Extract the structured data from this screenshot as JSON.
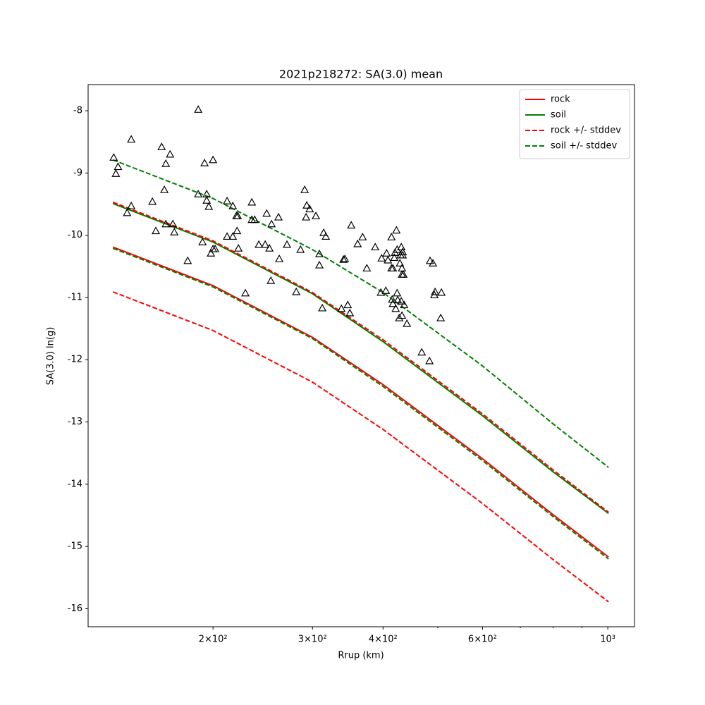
{
  "chart_data": {
    "type": "line",
    "title": "2021p218272: SA(3.0) mean",
    "xlabel": "Rrup (km)",
    "ylabel": "SA(3.0) ln(g)",
    "xscale": "log",
    "xlim": [
      120.2,
      1115
    ],
    "ylim": [
      -16.29,
      -7.58
    ],
    "xticks": [
      {
        "value": 200,
        "label": "2×10²"
      },
      {
        "value": 300,
        "label": "3×10²"
      },
      {
        "value": 400,
        "label": "4×10²"
      },
      {
        "value": 600,
        "label": "6×10²"
      },
      {
        "value": 1000,
        "label": "10³"
      }
    ],
    "xminorticks": [
      500,
      700,
      800,
      900
    ],
    "yticks": [
      -16,
      -15,
      -14,
      -13,
      -12,
      -11,
      -10,
      -9,
      -8
    ],
    "legend": "upper right",
    "x": [
      133,
      200,
      300,
      400,
      600,
      800,
      1003
    ],
    "series": [
      {
        "name": "rock",
        "color": "#ff0000",
        "style": "solid",
        "values": [
          -10.19,
          -10.81,
          -11.64,
          -12.4,
          -13.59,
          -14.49,
          -15.17
        ]
      },
      {
        "name": "soil",
        "color": "#008000",
        "style": "solid",
        "values": [
          -9.49,
          -10.11,
          -10.94,
          -11.71,
          -12.9,
          -13.8,
          -14.47
        ]
      },
      {
        "name": "rock +/- stddev",
        "color": "#ff0000",
        "style": "dashed",
        "values": [
          -9.47,
          -10.09,
          -10.92,
          -11.68,
          -12.87,
          -13.77,
          -14.45
        ]
      },
      {
        "color": "#ff0000",
        "style": "dashed",
        "values": [
          -10.91,
          -11.53,
          -12.36,
          -13.12,
          -14.31,
          -15.21,
          -15.89
        ]
      },
      {
        "name": "soil +/- stddev",
        "color": "#008000",
        "style": "dashed",
        "values": [
          -8.79,
          -9.41,
          -10.23,
          -10.92,
          -12.1,
          -13.03,
          -13.73
        ]
      },
      {
        "color": "#008000",
        "style": "dashed",
        "values": [
          -10.21,
          -10.83,
          -11.66,
          -12.43,
          -13.62,
          -14.52,
          -15.2
        ]
      }
    ],
    "points": {
      "color": "#000000",
      "x": [
        133.4,
        134.6,
        135.8,
        143.3,
        140.9,
        143.3,
        162.2,
        167.9,
        165.0,
        164.0,
        156.2,
        158.4,
        165.0,
        169.8,
        170.8,
        180.4,
        188.3,
        188.3,
        194.9,
        194.9,
        196.6,
        200,
        193.2,
        191.6,
        198.3,
        200,
        201.7,
        211.8,
        216.8,
        211.8,
        216.8,
        220.0,
        221.2,
        220.6,
        221.8,
        228.2,
        234.3,
        234.3,
        237.0,
        241.1,
        247.4,
        248.9,
        251.7,
        253.9,
        253.2,
        261.2,
        262.0,
        270.4,
        280.8,
        285.7,
        290.6,
        293.1,
        292.3,
        296.6,
        304.2,
        308.6,
        308.6,
        314.0,
        316.8,
        312.2,
        337.5,
        340.4,
        342.4,
        346.4,
        349.4,
        351.4,
        360.6,
        368.0,
        374.4,
        387.4,
        396.5,
        397.7,
        405.8,
        404.6,
        408.1,
        414.0,
        414.0,
        416.4,
        416.4,
        418.8,
        420.0,
        415.2,
        421.2,
        422.4,
        423.6,
        423.6,
        424.8,
        427.3,
        428.5,
        429.7,
        430.9,
        430.9,
        432.1,
        432.1,
        432.1,
        433.4,
        434.6,
        433.4,
        435.9,
        440.9,
        468.4,
        483.3,
        484.5,
        490.3,
        493.1,
        494.6,
        507.5,
        506.0
      ],
      "y": [
        -8.75,
        -9.01,
        -8.9,
        -8.46,
        -9.64,
        -9.53,
        -8.58,
        -8.7,
        -8.85,
        -9.27,
        -9.46,
        -9.93,
        -9.82,
        -9.82,
        -9.95,
        -10.41,
        -7.98,
        -9.34,
        -9.34,
        -9.44,
        -9.54,
        -8.79,
        -8.84,
        -10.11,
        -10.29,
        -10.22,
        -10.22,
        -9.45,
        -9.53,
        -10.02,
        -10.02,
        -9.69,
        -9.69,
        -9.93,
        -10.21,
        -10.93,
        -9.47,
        -9.75,
        -9.75,
        -10.15,
        -10.15,
        -9.65,
        -10.21,
        -9.82,
        -10.73,
        -9.71,
        -10.38,
        -10.15,
        -10.91,
        -10.23,
        -9.27,
        -9.52,
        -9.71,
        -9.58,
        -9.69,
        -10.48,
        -10.3,
        -9.96,
        -10.02,
        -11.17,
        -11.18,
        -10.39,
        -10.38,
        -11.12,
        -11.25,
        -9.84,
        -10.14,
        -10.03,
        -10.53,
        -10.19,
        -10.92,
        -10.37,
        -10.29,
        -10.89,
        -10.4,
        -10.03,
        -10.53,
        -10.53,
        -11.1,
        -10.36,
        -10.28,
        -11.03,
        -11.18,
        -9.92,
        -10.23,
        -10.93,
        -11.04,
        -11.33,
        -10.45,
        -10.32,
        -11.06,
        -10.19,
        -11.29,
        -10.53,
        -10.63,
        -10.27,
        -10.63,
        -10.32,
        -11.12,
        -11.42,
        -11.88,
        -12.02,
        -10.41,
        -10.45,
        -10.96,
        -10.91,
        -10.92,
        -11.33
      ]
    }
  }
}
